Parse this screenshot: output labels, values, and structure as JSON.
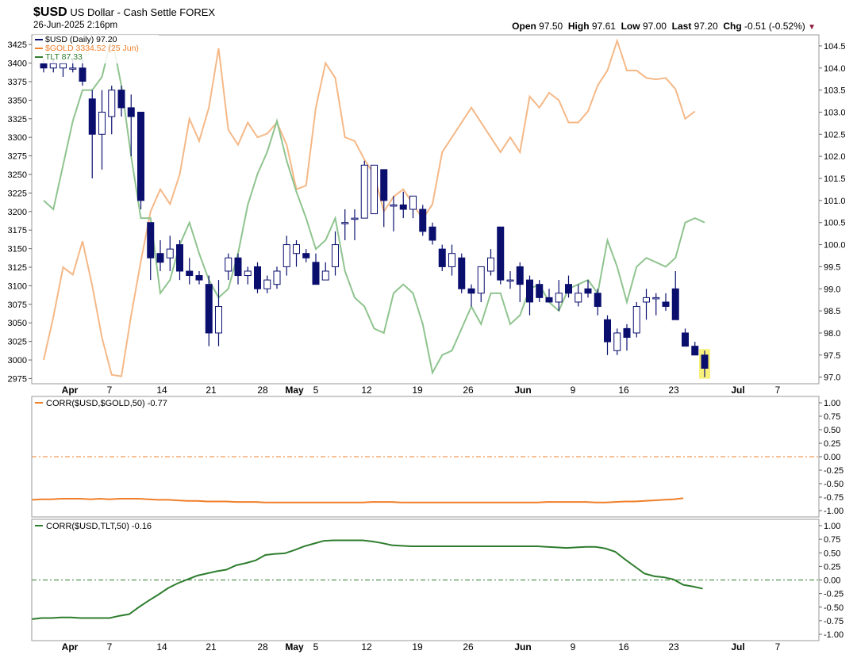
{
  "header": {
    "symbol": "$USD",
    "description": "US Dollar - Cash Settle FOREX",
    "datetime": "26-Jun-2025 2:16pm",
    "open_label": "Open",
    "open": "97.50",
    "high_label": "High",
    "high": "97.61",
    "low_label": "Low",
    "low": "97.00",
    "last_label": "Last",
    "last": "97.20",
    "chg_label": "Chg",
    "chg": "-0.51 (-0.52%)"
  },
  "colors": {
    "usd_bull": "#ffffff",
    "usd_bear": "#0a0f6e",
    "gold": "#f5b887",
    "gold_strong": "#f07f2a",
    "tlt": "#8fc48f",
    "tlt_strong": "#2e7d2e",
    "highlight": "#f7f07a",
    "down_arrow": "#8b1a3c"
  },
  "chart_data": [
    {
      "type": "candlestick",
      "legend": [
        {
          "label": "$USD (Daily) 97.20",
          "color": "#0a0f6e"
        },
        {
          "label": "$GOLD 3334.52 (25 Jun)",
          "color": "#f07f2a"
        },
        {
          "label": "TLT 87.33",
          "color": "#2e7d2e"
        }
      ],
      "x_tick_labels": [
        "Apr",
        "7",
        "14",
        "21",
        "28",
        "May",
        "5",
        "12",
        "19",
        "26",
        "Jun",
        "9",
        "16",
        "23",
        "Jul",
        "7"
      ],
      "right_axis": {
        "label": "",
        "ticks": [
          97.0,
          97.5,
          98.0,
          98.5,
          99.0,
          99.5,
          100.0,
          100.5,
          101.0,
          101.5,
          102.0,
          102.5,
          103.0,
          103.5,
          104.0,
          104.5
        ],
        "range": [
          96.85,
          104.75
        ]
      },
      "left_axis": {
        "label": "",
        "ticks": [
          2975,
          3000,
          3025,
          3050,
          3075,
          3100,
          3125,
          3150,
          3175,
          3200,
          3225,
          3250,
          3275,
          3300,
          3325,
          3350,
          3375,
          3400,
          3425
        ],
        "range": [
          2968,
          3438
        ]
      },
      "usd_candles": [
        {
          "o": 104.1,
          "h": 104.2,
          "l": 103.9,
          "c": 104.0
        },
        {
          "o": 104.0,
          "h": 104.2,
          "l": 103.9,
          "c": 104.1
        },
        {
          "o": 104.0,
          "h": 104.1,
          "l": 103.8,
          "c": 104.1
        },
        {
          "o": 104.0,
          "h": 104.2,
          "l": 103.9,
          "c": 104.0
        },
        {
          "o": 104.0,
          "h": 104.2,
          "l": 103.6,
          "c": 103.7
        },
        {
          "o": 103.3,
          "h": 103.5,
          "l": 101.5,
          "c": 102.5
        },
        {
          "o": 102.5,
          "h": 103.5,
          "l": 101.7,
          "c": 103.0
        },
        {
          "o": 102.9,
          "h": 103.6,
          "l": 102.5,
          "c": 103.5
        },
        {
          "o": 103.5,
          "h": 103.6,
          "l": 102.9,
          "c": 103.1
        },
        {
          "o": 103.1,
          "h": 103.4,
          "l": 102.0,
          "c": 102.9
        },
        {
          "o": 103.0,
          "h": 103.0,
          "l": 100.8,
          "c": 101.0
        },
        {
          "o": 100.5,
          "h": 100.5,
          "l": 99.2,
          "c": 99.7
        },
        {
          "o": 99.8,
          "h": 100.1,
          "l": 99.4,
          "c": 99.6
        },
        {
          "o": 99.7,
          "h": 100.2,
          "l": 99.4,
          "c": 99.9
        },
        {
          "o": 100.0,
          "h": 100.1,
          "l": 99.2,
          "c": 99.4
        },
        {
          "o": 99.4,
          "h": 99.7,
          "l": 99.1,
          "c": 99.3
        },
        {
          "o": 99.3,
          "h": 99.4,
          "l": 99.1,
          "c": 99.2
        },
        {
          "o": 99.1,
          "h": 99.3,
          "l": 97.7,
          "c": 98.0
        },
        {
          "o": 98.0,
          "h": 99.2,
          "l": 97.7,
          "c": 98.6
        },
        {
          "o": 99.4,
          "h": 99.8,
          "l": 99.2,
          "c": 99.7
        },
        {
          "o": 99.7,
          "h": 99.8,
          "l": 99.1,
          "c": 99.3
        },
        {
          "o": 99.3,
          "h": 99.5,
          "l": 99.1,
          "c": 99.4
        },
        {
          "o": 99.5,
          "h": 99.6,
          "l": 98.9,
          "c": 99.0
        },
        {
          "o": 99.0,
          "h": 99.3,
          "l": 98.9,
          "c": 99.2
        },
        {
          "o": 99.1,
          "h": 99.5,
          "l": 99.0,
          "c": 99.4
        },
        {
          "o": 99.5,
          "h": 100.2,
          "l": 99.3,
          "c": 100.0
        },
        {
          "o": 99.8,
          "h": 100.1,
          "l": 99.5,
          "c": 100.0
        },
        {
          "o": 99.8,
          "h": 99.9,
          "l": 99.6,
          "c": 99.7
        },
        {
          "o": 99.6,
          "h": 99.8,
          "l": 99.1,
          "c": 99.1
        },
        {
          "o": 99.2,
          "h": 99.6,
          "l": 99.2,
          "c": 99.4
        },
        {
          "o": 99.5,
          "h": 100.3,
          "l": 99.3,
          "c": 100.0
        },
        {
          "o": 100.5,
          "h": 100.8,
          "l": 100.1,
          "c": 100.5
        },
        {
          "o": 100.6,
          "h": 100.8,
          "l": 100.1,
          "c": 100.6
        },
        {
          "o": 100.6,
          "h": 101.9,
          "l": 100.6,
          "c": 101.8
        },
        {
          "o": 100.7,
          "h": 101.8,
          "l": 100.7,
          "c": 101.8
        },
        {
          "o": 101.7,
          "h": 101.7,
          "l": 100.4,
          "c": 101.0
        },
        {
          "o": 100.9,
          "h": 101.1,
          "l": 100.3,
          "c": 100.9
        },
        {
          "o": 100.9,
          "h": 101.2,
          "l": 100.6,
          "c": 100.8
        },
        {
          "o": 100.8,
          "h": 101.1,
          "l": 100.6,
          "c": 101.1
        },
        {
          "o": 100.8,
          "h": 100.9,
          "l": 100.2,
          "c": 100.3
        },
        {
          "o": 100.4,
          "h": 100.5,
          "l": 100.0,
          "c": 100.1
        },
        {
          "o": 99.9,
          "h": 100.0,
          "l": 99.4,
          "c": 99.5
        },
        {
          "o": 99.5,
          "h": 100.0,
          "l": 99.3,
          "c": 99.8
        },
        {
          "o": 99.7,
          "h": 99.8,
          "l": 98.9,
          "c": 99.0
        },
        {
          "o": 99.0,
          "h": 99.1,
          "l": 98.6,
          "c": 98.9
        },
        {
          "o": 98.9,
          "h": 99.5,
          "l": 98.7,
          "c": 99.5
        },
        {
          "o": 99.4,
          "h": 99.9,
          "l": 99.3,
          "c": 99.7
        },
        {
          "o": 100.4,
          "h": 100.4,
          "l": 99.1,
          "c": 99.2
        },
        {
          "o": 99.2,
          "h": 99.4,
          "l": 99.0,
          "c": 99.2
        },
        {
          "o": 99.5,
          "h": 99.6,
          "l": 98.7,
          "c": 99.1
        },
        {
          "o": 99.2,
          "h": 99.3,
          "l": 98.4,
          "c": 98.7
        },
        {
          "o": 99.1,
          "h": 99.2,
          "l": 98.7,
          "c": 98.8
        },
        {
          "o": 98.8,
          "h": 99.0,
          "l": 98.7,
          "c": 98.7
        },
        {
          "o": 98.7,
          "h": 99.2,
          "l": 98.5,
          "c": 98.9
        },
        {
          "o": 99.1,
          "h": 99.3,
          "l": 98.8,
          "c": 98.9
        },
        {
          "o": 98.7,
          "h": 99.1,
          "l": 98.6,
          "c": 98.9
        },
        {
          "o": 99.0,
          "h": 99.2,
          "l": 98.8,
          "c": 98.9
        },
        {
          "o": 98.9,
          "h": 99.0,
          "l": 98.4,
          "c": 98.6
        },
        {
          "o": 98.3,
          "h": 98.4,
          "l": 97.5,
          "c": 97.8
        },
        {
          "o": 97.6,
          "h": 98.1,
          "l": 97.5,
          "c": 98.0
        },
        {
          "o": 98.1,
          "h": 98.2,
          "l": 97.6,
          "c": 97.9
        },
        {
          "o": 98.0,
          "h": 98.7,
          "l": 97.9,
          "c": 98.6
        },
        {
          "o": 98.7,
          "h": 99.0,
          "l": 98.3,
          "c": 98.8
        },
        {
          "o": 98.8,
          "h": 98.9,
          "l": 98.4,
          "c": 98.8
        },
        {
          "o": 98.7,
          "h": 98.9,
          "l": 98.5,
          "c": 98.6
        },
        {
          "o": 99.0,
          "h": 99.4,
          "l": 98.4,
          "c": 98.3
        },
        {
          "o": 98.0,
          "h": 98.1,
          "l": 97.7,
          "c": 97.7
        },
        {
          "o": 97.7,
          "h": 97.8,
          "l": 97.5,
          "c": 97.5
        },
        {
          "o": 97.5,
          "h": 97.6,
          "l": 97.0,
          "c": 97.2
        }
      ],
      "gold_series": [
        3000,
        3058,
        3125,
        3115,
        3160,
        3100,
        3030,
        2980,
        2978,
        3060,
        3133,
        3200,
        3230,
        3210,
        3250,
        3325,
        3295,
        3340,
        3420,
        3310,
        3290,
        3320,
        3300,
        3305,
        3320,
        3290,
        3230,
        3235,
        3340,
        3400,
        3380,
        3300,
        3295,
        3270,
        3250,
        3200,
        3220,
        3230,
        3210,
        3190,
        3210,
        3280,
        3300,
        3320,
        3340,
        3320,
        3300,
        3280,
        3300,
        3280,
        3355,
        3340,
        3360,
        3350,
        3320,
        3320,
        3335,
        3370,
        3390,
        3430,
        3390,
        3390,
        3380,
        3378,
        3380,
        3365,
        3325,
        3335
      ],
      "tlt_series": [
        101.0,
        100.8,
        101.8,
        102.8,
        103.5,
        103.5,
        103.8,
        104.7,
        103.6,
        102.0,
        100.6,
        100.6,
        98.9,
        99.2,
        100.0,
        100.5,
        99.8,
        99.2,
        98.8,
        99.0,
        99.8,
        100.9,
        101.6,
        102.1,
        102.8,
        101.9,
        101.2,
        100.6,
        99.9,
        100.1,
        100.6,
        99.4,
        98.8,
        98.6,
        98.1,
        98.0,
        98.9,
        99.1,
        98.9,
        98.2,
        97.1,
        97.5,
        97.6,
        98.1,
        98.6,
        98.2,
        98.9,
        98.9,
        98.2,
        98.4,
        99.0,
        99.1,
        98.7,
        98.5,
        99.0,
        99.1,
        99.2,
        98.9,
        100.1,
        99.5,
        98.7,
        99.5,
        99.7,
        99.6,
        99.5,
        99.7,
        100.5,
        100.6,
        100.5
      ]
    },
    {
      "type": "line",
      "title": "CORR($USD,$GOLD,50) -0.77",
      "ylim": [
        -1.0,
        1.0
      ],
      "ticks": [
        "1.00",
        "0.75",
        "0.50",
        "0.25",
        "0.00",
        "-0.25",
        "-0.50",
        "-0.75",
        "-1.00"
      ],
      "reference_line": 0.0,
      "values": [
        -0.8,
        -0.79,
        -0.79,
        -0.78,
        -0.78,
        -0.78,
        -0.79,
        -0.78,
        -0.79,
        -0.78,
        -0.78,
        -0.78,
        -0.79,
        -0.8,
        -0.8,
        -0.81,
        -0.82,
        -0.82,
        -0.83,
        -0.83,
        -0.83,
        -0.84,
        -0.84,
        -0.84,
        -0.85,
        -0.85,
        -0.85,
        -0.85,
        -0.85,
        -0.85,
        -0.85,
        -0.85,
        -0.85,
        -0.85,
        -0.85,
        -0.84,
        -0.84,
        -0.84,
        -0.85,
        -0.85,
        -0.85,
        -0.85,
        -0.85,
        -0.85,
        -0.85,
        -0.85,
        -0.85,
        -0.85,
        -0.85,
        -0.85,
        -0.85,
        -0.85,
        -0.85,
        -0.84,
        -0.84,
        -0.84,
        -0.84,
        -0.84,
        -0.85,
        -0.85,
        -0.84,
        -0.83,
        -0.83,
        -0.82,
        -0.81,
        -0.8,
        -0.79,
        -0.77
      ]
    },
    {
      "type": "line",
      "title": "CORR($USD,TLT,50) -0.16",
      "ylim": [
        -1.0,
        1.0
      ],
      "ticks": [
        "1.00",
        "0.75",
        "0.50",
        "0.25",
        "0.00",
        "-0.25",
        "-0.50",
        "-0.75",
        "-1.00"
      ],
      "reference_line": 0.0,
      "values": [
        -0.72,
        -0.7,
        -0.7,
        -0.69,
        -0.69,
        -0.7,
        -0.7,
        -0.7,
        -0.7,
        -0.66,
        -0.63,
        -0.5,
        -0.38,
        -0.27,
        -0.15,
        -0.06,
        0.01,
        0.08,
        0.12,
        0.16,
        0.19,
        0.27,
        0.31,
        0.36,
        0.46,
        0.48,
        0.49,
        0.55,
        0.62,
        0.67,
        0.72,
        0.73,
        0.73,
        0.73,
        0.73,
        0.71,
        0.68,
        0.64,
        0.63,
        0.62,
        0.62,
        0.62,
        0.62,
        0.62,
        0.62,
        0.62,
        0.62,
        0.62,
        0.62,
        0.62,
        0.62,
        0.62,
        0.62,
        0.61,
        0.6,
        0.59,
        0.6,
        0.61,
        0.61,
        0.58,
        0.52,
        0.38,
        0.25,
        0.12,
        0.07,
        0.05,
        0.01,
        -0.09,
        -0.12,
        -0.16
      ]
    }
  ]
}
